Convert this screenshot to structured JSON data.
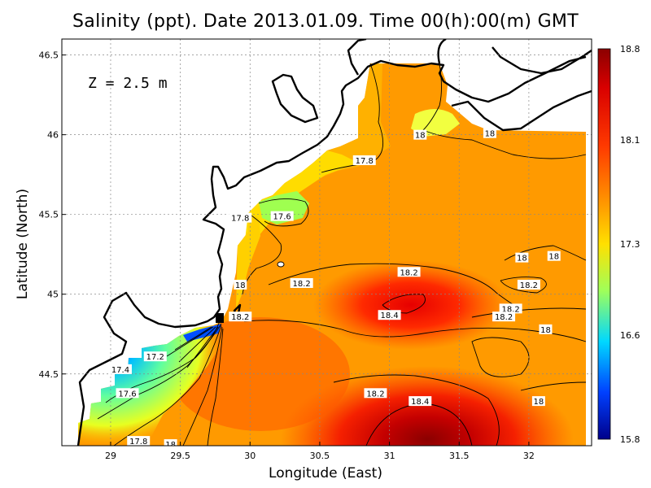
{
  "title": "Salinity (ppt). Date 2013.01.09. Time 00(h):00(m) GMT",
  "depth_label": "Z = 2.5 m",
  "colors": {
    "land": "#ffffff",
    "coast": "#000000",
    "grid": "#999999",
    "scale": [
      "#00007f",
      "#0000ff",
      "#00bfff",
      "#40ffbf",
      "#ffff00",
      "#ff8c00",
      "#ff0000",
      "#8b0000"
    ]
  },
  "chart_data": {
    "type": "heatmap",
    "xlabel": "Longitude (East)",
    "ylabel": "Latitude (North)",
    "xlim": [
      28.65,
      32.45
    ],
    "ylim": [
      44.05,
      46.6
    ],
    "xticks": [
      "29",
      "29.5",
      "30",
      "30.5",
      "31",
      "31.5",
      "32"
    ],
    "xtick_values": [
      29,
      29.5,
      30,
      30.5,
      31,
      31.5,
      32
    ],
    "yticks": [
      "44.5",
      "45",
      "45.5",
      "46",
      "46.5"
    ],
    "ytick_values": [
      44.5,
      45,
      45.5,
      46,
      46.5
    ],
    "grid": true,
    "colorbar": {
      "labels": [
        "18.8",
        "18.1",
        "17.3",
        "16.6",
        "15.8"
      ],
      "values": [
        18.8,
        18.1,
        17.3,
        16.6,
        15.8
      ],
      "range": [
        15.8,
        18.8
      ]
    },
    "contour_labels": [
      {
        "text": "18",
        "lon": 31.22,
        "lat": 46.0
      },
      {
        "text": "18",
        "lon": 31.72,
        "lat": 46.01
      },
      {
        "text": "17.8",
        "lon": 30.82,
        "lat": 45.84
      },
      {
        "text": "17.8",
        "lon": 29.93,
        "lat": 45.48
      },
      {
        "text": "17.6",
        "lon": 30.23,
        "lat": 45.49
      },
      {
        "text": "18",
        "lon": 31.95,
        "lat": 45.23
      },
      {
        "text": "18",
        "lon": 32.18,
        "lat": 45.24
      },
      {
        "text": "18.2",
        "lon": 31.14,
        "lat": 45.14
      },
      {
        "text": "18.2",
        "lon": 30.37,
        "lat": 45.07
      },
      {
        "text": "18.2",
        "lon": 32.0,
        "lat": 45.06
      },
      {
        "text": "18",
        "lon": 29.93,
        "lat": 45.06
      },
      {
        "text": "18.2",
        "lon": 31.87,
        "lat": 44.91
      },
      {
        "text": "18.2",
        "lon": 31.82,
        "lat": 44.86
      },
      {
        "text": "18.4",
        "lon": 31.0,
        "lat": 44.87
      },
      {
        "text": "18.2",
        "lon": 29.93,
        "lat": 44.86
      },
      {
        "text": "18",
        "lon": 32.12,
        "lat": 44.78
      },
      {
        "text": "17.2",
        "lon": 29.32,
        "lat": 44.61
      },
      {
        "text": "17.4",
        "lon": 29.07,
        "lat": 44.53
      },
      {
        "text": "17.6",
        "lon": 29.12,
        "lat": 44.38
      },
      {
        "text": "18.2",
        "lon": 30.9,
        "lat": 44.38
      },
      {
        "text": "18",
        "lon": 32.07,
        "lat": 44.33
      },
      {
        "text": "18.4",
        "lon": 31.22,
        "lat": 44.33
      },
      {
        "text": "17.8",
        "lon": 29.2,
        "lat": 44.08
      },
      {
        "text": "18",
        "lon": 29.43,
        "lat": 44.06
      }
    ]
  }
}
